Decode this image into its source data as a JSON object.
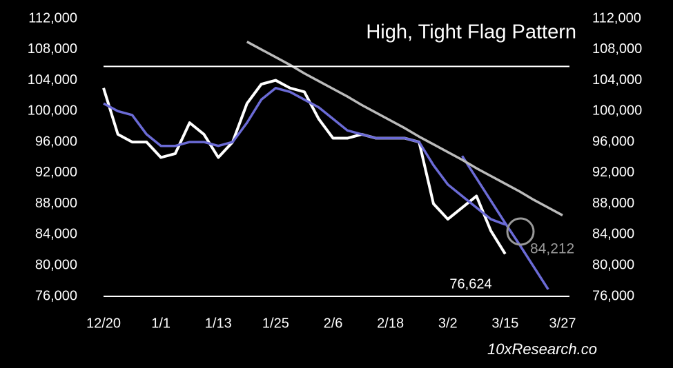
{
  "chart_data": {
    "type": "line",
    "title": "High, Tight Flag Pattern",
    "footer": "10xResearch.co",
    "annotations": [
      "76,624",
      "84,212"
    ],
    "categories": [
      "12/20",
      null,
      null,
      null,
      "1/1",
      null,
      null,
      null,
      "1/13",
      null,
      null,
      null,
      "1/25",
      null,
      null,
      null,
      "2/6",
      null,
      null,
      null,
      "2/18",
      null,
      null,
      null,
      "3/2",
      null,
      null,
      null,
      "3/15",
      null,
      null,
      null,
      "3/27"
    ],
    "series": [
      {
        "color": "#6b6bd6",
        "values": [
          101000,
          100000,
          99500,
          97000,
          95500,
          95500,
          96000,
          96000,
          95500,
          96000,
          98500,
          101500,
          103000,
          102500,
          101500,
          100500,
          99000,
          97500,
          97000,
          96500,
          96500,
          96500,
          96000,
          93000,
          90500,
          89000,
          87500,
          86000,
          85300,
          null,
          null,
          null,
          null
        ]
      },
      {
        "color": "#ffffff",
        "values": [
          103000,
          97000,
          96000,
          96000,
          94000,
          94500,
          98500,
          97000,
          94000,
          96000,
          101000,
          103500,
          104000,
          103000,
          102500,
          99000,
          96500,
          96500,
          97000,
          96500,
          96500,
          96500,
          96000,
          88000,
          86000,
          87500,
          89000,
          84500,
          81500,
          null,
          null,
          null,
          null
        ]
      },
      {
        "color": "#bbbbbb",
        "values": [
          null,
          null,
          null,
          null,
          null,
          null,
          null,
          null,
          null,
          null,
          109000,
          108000,
          107000,
          106000,
          104900,
          103900,
          102900,
          101900,
          100800,
          99800,
          98800,
          97800,
          96700,
          95700,
          94700,
          93700,
          92600,
          91600,
          90600,
          89600,
          88500,
          87500,
          86500
        ]
      },
      {
        "color": "#6b6bd6",
        "values": [
          null,
          null,
          null,
          null,
          null,
          null,
          null,
          null,
          null,
          null,
          null,
          null,
          null,
          null,
          null,
          null,
          null,
          null,
          null,
          null,
          null,
          null,
          null,
          null,
          null,
          94200,
          91300,
          88400,
          85500,
          82700,
          79800,
          76900,
          null
        ]
      }
    ],
    "hlines": [
      105800,
      76000
    ],
    "ylim": [
      76000,
      112000
    ],
    "yticks": [
      {
        "value": 76000,
        "label": "76,000"
      },
      {
        "value": 80000,
        "label": "80,000"
      },
      {
        "value": 84000,
        "label": "84,000"
      },
      {
        "value": 88000,
        "label": "88,000"
      },
      {
        "value": 92000,
        "label": "92,000"
      },
      {
        "value": 96000,
        "label": "96,000"
      },
      {
        "value": 100000,
        "label": "100,000"
      },
      {
        "value": 104000,
        "label": "104,000"
      },
      {
        "value": 108000,
        "label": "108,000"
      },
      {
        "value": 112000,
        "label": "112,000"
      }
    ]
  }
}
